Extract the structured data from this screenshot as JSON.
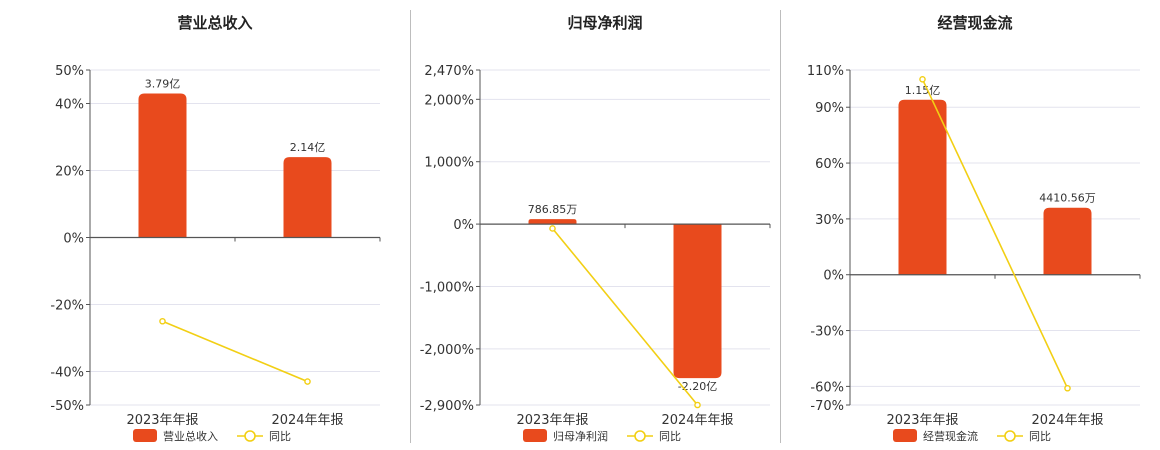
{
  "colors": {
    "bar": "#E84A1D",
    "line": "#F2CF14",
    "grid": "#E3E3EE",
    "axis": "#555555"
  },
  "chart_data": [
    {
      "type": "bar",
      "title": "营业总收入",
      "categories": [
        "2023年年报",
        "2024年年报"
      ],
      "series": [
        {
          "name": "营业总收入",
          "type": "bar",
          "values": [
            43,
            24
          ],
          "labels": [
            "3.79亿",
            "2.14亿"
          ]
        },
        {
          "name": "同比",
          "type": "line",
          "values": [
            -25,
            -43
          ]
        }
      ],
      "ylim": [
        -50,
        50
      ],
      "yticks": [
        50,
        40,
        20,
        0,
        -20,
        -40,
        -50
      ],
      "ytick_labels": [
        "50%",
        "40%",
        "20%",
        "0%",
        "-20%",
        "-40%",
        "-50%"
      ],
      "grid": true,
      "legend": "bottom"
    },
    {
      "type": "bar",
      "title": "归母净利润",
      "categories": [
        "2023年年报",
        "2024年年报"
      ],
      "series": [
        {
          "name": "归母净利润",
          "type": "bar",
          "values": [
            80,
            -2470
          ],
          "labels": [
            "786.85万",
            "-2.20亿"
          ]
        },
        {
          "name": "同比",
          "type": "line",
          "values": [
            -70,
            -2900
          ]
        }
      ],
      "ylim": [
        -2900,
        2470
      ],
      "yticks": [
        2470,
        2000,
        1000,
        0,
        -1000,
        -2000,
        -2900
      ],
      "ytick_labels": [
        "2,470%",
        "2,000%",
        "1,000%",
        "0%",
        "-1,000%",
        "-2,000%",
        "-2,900%"
      ],
      "grid": true,
      "legend": "bottom"
    },
    {
      "type": "bar",
      "title": "经营现金流",
      "categories": [
        "2023年年报",
        "2024年年报"
      ],
      "series": [
        {
          "name": "经营现金流",
          "type": "bar",
          "values": [
            94,
            36
          ],
          "labels": [
            "1.15亿",
            "4410.56万"
          ]
        },
        {
          "name": "同比",
          "type": "line",
          "values": [
            105,
            -61
          ]
        }
      ],
      "ylim": [
        -70,
        110
      ],
      "yticks": [
        110,
        90,
        60,
        30,
        0,
        -30,
        -60,
        -70
      ],
      "ytick_labels": [
        "110%",
        "90%",
        "60%",
        "30%",
        "0%",
        "-30%",
        "-60%",
        "-70%"
      ],
      "grid": true,
      "legend": "bottom"
    }
  ]
}
